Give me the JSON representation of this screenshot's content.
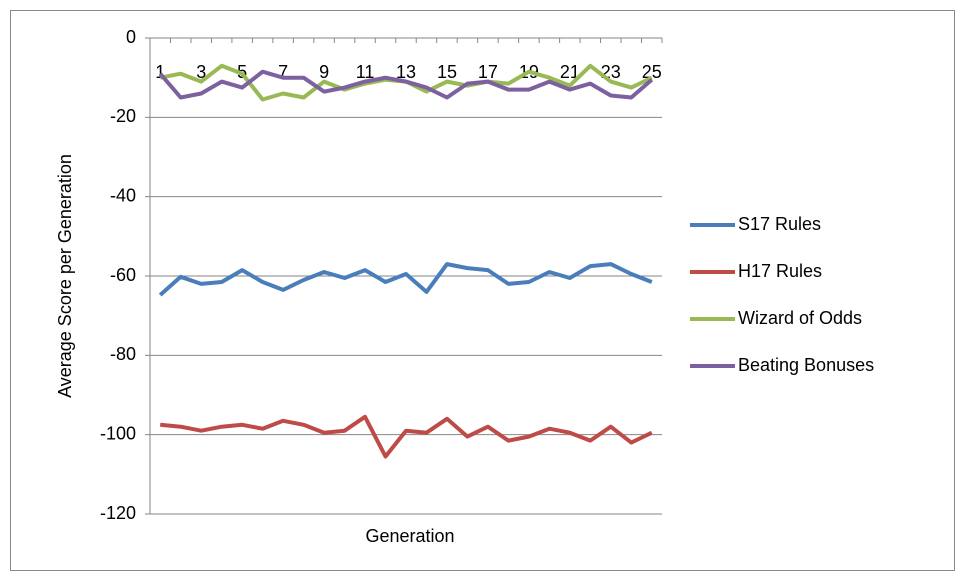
{
  "chart_data": {
    "type": "line",
    "x_label": "Generation",
    "y_label": "Average Score per Generation",
    "categories": [
      "1",
      null,
      "3",
      null,
      "5",
      null,
      "7",
      null,
      "9",
      null,
      "11",
      null,
      "13",
      null,
      "15",
      null,
      "17",
      null,
      "19",
      null,
      "21",
      null,
      "23",
      null,
      "25"
    ],
    "series": [
      {
        "name": "S17 Rules",
        "color": "#4a7ebb",
        "values": [
          -64.8,
          -60.2,
          -62,
          -61.5,
          -58.5,
          -61.5,
          -63.5,
          -61,
          -59,
          -60.5,
          -58.5,
          -61.5,
          -59.5,
          -64,
          -57,
          -58,
          -58.5,
          -62,
          -61.5,
          -59,
          -60.5,
          -57.5,
          -57,
          -59.5,
          -61.5
        ]
      },
      {
        "name": "H17 Rules",
        "color": "#be4b48",
        "values": [
          -97.5,
          -98,
          -99,
          -98,
          -97.5,
          -98.5,
          -96.5,
          -97.5,
          -99.5,
          -99,
          -95.5,
          -105.5,
          -99,
          -99.5,
          -96,
          -100.5,
          -98,
          -101.5,
          -100.5,
          -98.5,
          -99.5,
          -101.5,
          -98,
          -102,
          -99.5
        ]
      },
      {
        "name": "Wizard of Odds",
        "color": "#98b954",
        "values": [
          -10,
          -9,
          -11,
          -7,
          -9,
          -15.5,
          -14,
          -15,
          -11,
          -13,
          -11.5,
          -10.5,
          -11,
          -13.5,
          -11,
          -12,
          -11,
          -11.5,
          -8.5,
          -10,
          -12,
          -7,
          -11,
          -12.5,
          -10
        ]
      },
      {
        "name": "Beating Bonuses",
        "color": "#7d60a0",
        "values": [
          -9,
          -15,
          -14,
          -11,
          -12.5,
          -8.5,
          -10,
          -10,
          -13.5,
          -12.5,
          -11,
          -10,
          -11,
          -12.5,
          -15,
          -11.5,
          -11,
          -13,
          -13,
          -11,
          -13,
          -11.5,
          -14.5,
          -15,
          -10.5
        ]
      }
    ],
    "ylim": [
      -120,
      0
    ],
    "yticks": [
      -120,
      -100,
      -80,
      -60,
      -40,
      -20,
      0
    ],
    "grid": true,
    "legend": "right"
  }
}
